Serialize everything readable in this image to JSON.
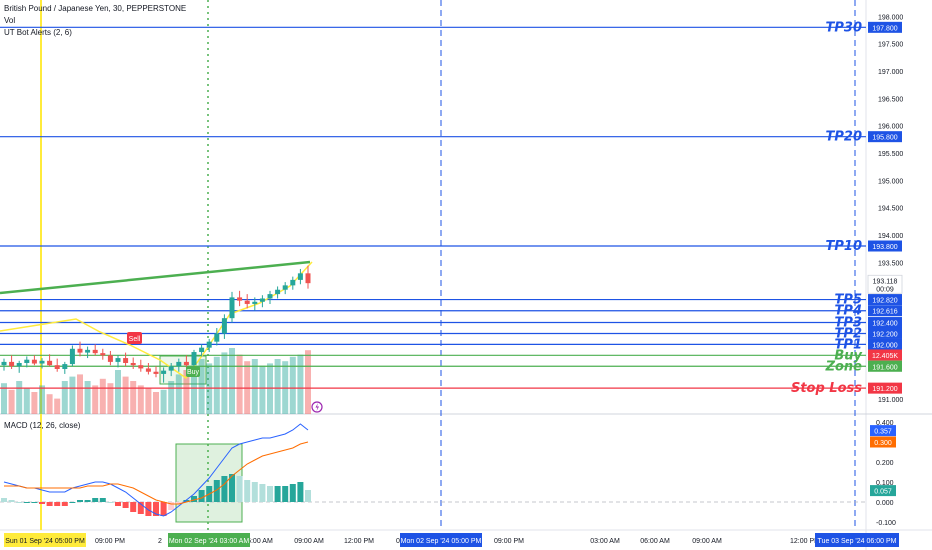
{
  "header": {
    "symbol_title": "British Pound / Japanese Yen, 30, PEPPERSTONE",
    "vol_label": "Vol",
    "indicator_label": "UT Bot Alerts (2, 6)"
  },
  "macd_legend": "MACD (12, 26, close)",
  "colors": {
    "level_blue": "#1e53e5",
    "buy_green": "#4caf50",
    "stop_red": "#f23645",
    "up_candle": "#26a69a",
    "down_candle": "#ef5350",
    "trend_green": "#4caf50",
    "trend_yellow": "#ffeb3b"
  },
  "levels": [
    {
      "label": "TP30",
      "price": "197.800",
      "value": 197.8,
      "kind": "tp"
    },
    {
      "label": "TP20",
      "price": "195.800",
      "value": 195.8,
      "kind": "tp"
    },
    {
      "label": "TP10",
      "price": "193.800",
      "value": 193.8,
      "kind": "tp"
    },
    {
      "label": "TP5",
      "price": "192.820",
      "value": 192.82,
      "kind": "tp"
    },
    {
      "label": "TP4",
      "price": "192.616",
      "value": 192.616,
      "kind": "tp"
    },
    {
      "label": "TP3",
      "price": "192.400",
      "value": 192.4,
      "kind": "tp"
    },
    {
      "label": "TP2",
      "price": "192.200",
      "value": 192.2,
      "kind": "tp"
    },
    {
      "label": "TP1",
      "price": "192.000",
      "value": 192.0,
      "kind": "tp"
    },
    {
      "label": "Buy",
      "price": "191.800",
      "value": 191.8,
      "kind": "zone"
    },
    {
      "label": "Zone",
      "price": "191.600",
      "value": 191.6,
      "kind": "zone"
    },
    {
      "label": "Stop Loss",
      "price": "191.200",
      "value": 191.2,
      "kind": "stop"
    }
  ],
  "price_ticks": [
    "198.000",
    "197.500",
    "197.000",
    "196.500",
    "196.000",
    "195.500",
    "195.000",
    "194.500",
    "194.000",
    "193.500",
    "191.000"
  ],
  "current_price": {
    "price": "193.118",
    "countdown": "00:09"
  },
  "volume_badge": "12.405K",
  "macd_ticks": [
    "0.400",
    "0.200",
    "0.100",
    "0.000",
    "-0.100"
  ],
  "macd_values": {
    "macd": "0.357",
    "signal": "0.300",
    "histogram": "0.057"
  },
  "time_axis": {
    "ticks": [
      "09:00 PM",
      "2",
      "06:00 AM",
      "09:00 AM",
      "12:00 PM",
      "0",
      "09:00 PM",
      "03:00 AM",
      "06:00 AM",
      "09:00 AM",
      "12:00 PM"
    ],
    "badges": [
      "Sun 01 Sep '24  05:00 PM",
      "Mon 02 Sep '24  03:00 AM",
      "Mon 02 Sep '24  05:00 PM",
      "Tue 03 Sep '24  06:00 PM"
    ]
  },
  "signals": {
    "sell_label": "Sell",
    "buy_label": "Buy"
  },
  "chart_data": {
    "type": "candlestick",
    "ohlc": [
      [
        191.62,
        191.74,
        191.52,
        191.68
      ],
      [
        191.68,
        191.8,
        191.55,
        191.6
      ],
      [
        191.6,
        191.7,
        191.48,
        191.66
      ],
      [
        191.66,
        191.78,
        191.58,
        191.72
      ],
      [
        191.72,
        191.8,
        191.62,
        191.65
      ],
      [
        191.65,
        191.75,
        191.56,
        191.7
      ],
      [
        191.7,
        191.82,
        191.6,
        191.62
      ],
      [
        191.62,
        191.74,
        191.5,
        191.55
      ],
      [
        191.55,
        191.68,
        191.46,
        191.64
      ],
      [
        191.64,
        191.98,
        191.6,
        191.92
      ],
      [
        191.92,
        192.05,
        191.78,
        191.85
      ],
      [
        191.85,
        191.96,
        191.75,
        191.9
      ],
      [
        191.9,
        192.0,
        191.8,
        191.84
      ],
      [
        191.84,
        191.92,
        191.72,
        191.8
      ],
      [
        191.8,
        191.88,
        191.62,
        191.68
      ],
      [
        191.68,
        191.8,
        191.58,
        191.75
      ],
      [
        191.75,
        191.85,
        191.6,
        191.66
      ],
      [
        191.66,
        191.76,
        191.55,
        191.62
      ],
      [
        191.62,
        191.72,
        191.5,
        191.56
      ],
      [
        191.56,
        191.66,
        191.45,
        191.5
      ],
      [
        191.5,
        191.6,
        191.4,
        191.46
      ],
      [
        191.46,
        191.58,
        191.3,
        191.52
      ],
      [
        191.52,
        191.66,
        191.42,
        191.6
      ],
      [
        191.6,
        191.74,
        191.5,
        191.68
      ],
      [
        191.68,
        191.8,
        191.58,
        191.62
      ],
      [
        191.62,
        191.9,
        191.58,
        191.86
      ],
      [
        191.86,
        192.0,
        191.78,
        191.94
      ],
      [
        191.94,
        192.1,
        191.86,
        192.05
      ],
      [
        192.05,
        192.3,
        191.98,
        192.2
      ],
      [
        192.2,
        192.55,
        192.1,
        192.48
      ],
      [
        192.48,
        192.96,
        192.4,
        192.86
      ],
      [
        192.86,
        192.98,
        192.7,
        192.8
      ],
      [
        192.8,
        192.92,
        192.66,
        192.74
      ],
      [
        192.74,
        192.86,
        192.62,
        192.78
      ],
      [
        192.78,
        192.9,
        192.68,
        192.84
      ],
      [
        192.84,
        192.98,
        192.74,
        192.92
      ],
      [
        192.92,
        193.06,
        192.84,
        193.0
      ],
      [
        193.0,
        193.14,
        192.92,
        193.08
      ],
      [
        193.08,
        193.24,
        193.0,
        193.18
      ],
      [
        193.18,
        193.38,
        193.1,
        193.3
      ],
      [
        193.3,
        193.44,
        193.02,
        193.12
      ]
    ],
    "volume": [
      28,
      22,
      30,
      24,
      20,
      26,
      18,
      14,
      30,
      34,
      36,
      30,
      26,
      32,
      28,
      40,
      34,
      30,
      26,
      24,
      20,
      22,
      30,
      36,
      40,
      44,
      50,
      46,
      52,
      56,
      60,
      54,
      48,
      50,
      44,
      46,
      50,
      48,
      52,
      54,
      58
    ],
    "macd_line": [
      0.1,
      0.09,
      0.08,
      0.07,
      0.07,
      0.06,
      0.05,
      0.05,
      0.05,
      0.07,
      0.08,
      0.09,
      0.1,
      0.1,
      0.09,
      0.07,
      0.05,
      0.02,
      -0.01,
      -0.04,
      -0.06,
      -0.07,
      -0.05,
      -0.02,
      0.01,
      0.04,
      0.08,
      0.12,
      0.17,
      0.22,
      0.27,
      0.29,
      0.3,
      0.31,
      0.32,
      0.32,
      0.33,
      0.34,
      0.36,
      0.39,
      0.36
    ],
    "signal_line": [
      0.08,
      0.08,
      0.08,
      0.07,
      0.07,
      0.07,
      0.07,
      0.07,
      0.07,
      0.07,
      0.07,
      0.08,
      0.08,
      0.08,
      0.09,
      0.09,
      0.08,
      0.07,
      0.05,
      0.03,
      0.01,
      0.0,
      -0.01,
      -0.01,
      0.0,
      0.01,
      0.02,
      0.04,
      0.06,
      0.09,
      0.13,
      0.16,
      0.19,
      0.21,
      0.23,
      0.24,
      0.25,
      0.26,
      0.27,
      0.29,
      0.3
    ],
    "histogram": [
      0.02,
      0.01,
      0.0,
      0.0,
      0.0,
      -0.01,
      -0.02,
      -0.02,
      -0.02,
      0.0,
      0.01,
      0.01,
      0.02,
      0.02,
      0.0,
      -0.02,
      -0.03,
      -0.05,
      -0.06,
      -0.07,
      -0.07,
      -0.07,
      -0.04,
      -0.01,
      0.01,
      0.03,
      0.06,
      0.08,
      0.11,
      0.13,
      0.14,
      0.13,
      0.11,
      0.1,
      0.09,
      0.08,
      0.08,
      0.08,
      0.09,
      0.1,
      0.06
    ],
    "price_range": [
      190.8,
      198.3
    ],
    "macd_range": [
      -0.13,
      0.43
    ]
  }
}
